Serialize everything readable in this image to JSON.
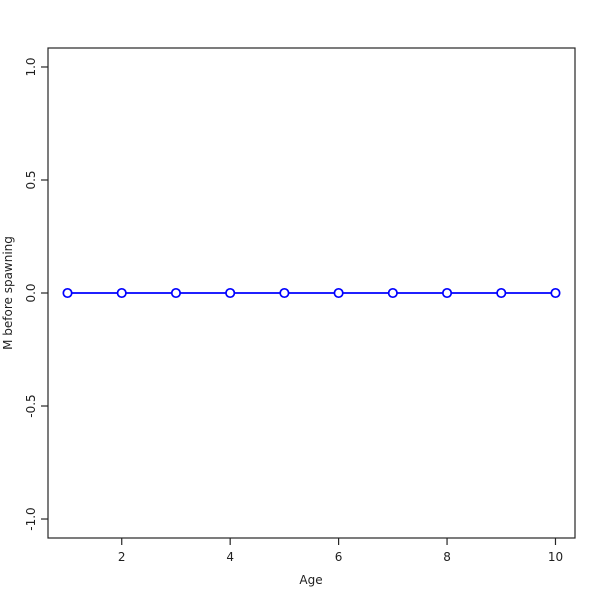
{
  "figure": {
    "background": "#ffffff"
  },
  "chart_data": {
    "type": "line",
    "title": "",
    "xlabel": "Age",
    "ylabel": "M before spawning",
    "x": [
      1,
      2,
      3,
      4,
      5,
      6,
      7,
      8,
      9,
      10
    ],
    "series": [
      {
        "name": "M before spawning",
        "color": "#0000ff",
        "marker": "open-circle",
        "marker_fill": "#ffffff",
        "values": [
          0,
          0,
          0,
          0,
          0,
          0,
          0,
          0,
          0,
          0
        ]
      }
    ],
    "xlim": [
      0.64,
      10.36
    ],
    "ylim": [
      -1.084,
      1.084
    ],
    "xticks": {
      "values": [
        2,
        4,
        6,
        8,
        10
      ],
      "labels": [
        "2",
        "4",
        "6",
        "8",
        "10"
      ]
    },
    "yticks": {
      "values": [
        1.0,
        0.5,
        0.0,
        -0.5,
        -1.0
      ],
      "labels": [
        "1.0",
        "0.5",
        "0.0",
        "-0.5",
        "-1.0"
      ]
    },
    "grid": false,
    "legend": null,
    "frame": "box",
    "axis_color": "#262626",
    "text_color": "#1f1f1f"
  }
}
